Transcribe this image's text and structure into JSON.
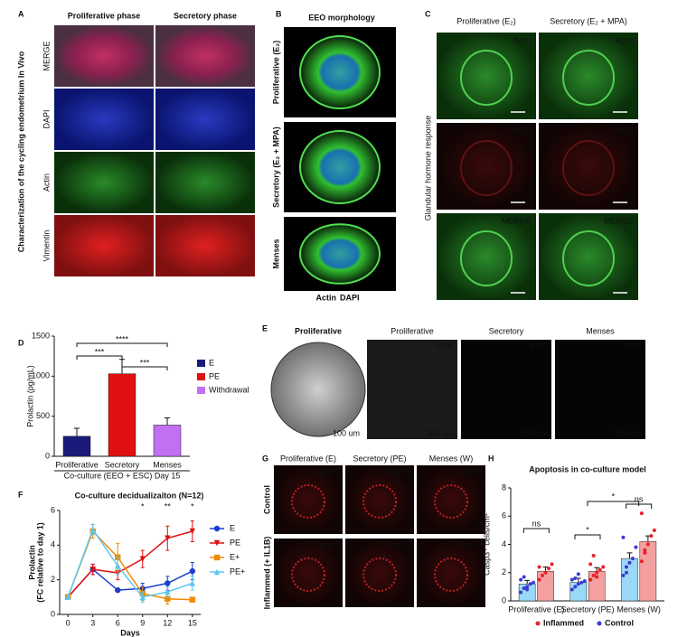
{
  "panels": {
    "A": {
      "letter": "A",
      "cols": [
        "Proliferative phase",
        "Secretory phase"
      ],
      "side": "Characterization of the cycling endometrium In Vivo",
      "rows": [
        "MERGE",
        "DAPI",
        "Actin",
        "Vimentin"
      ]
    },
    "B": {
      "letter": "B",
      "title": "EEO morphology",
      "rows": [
        "Proliferative (E₂)",
        "Secretory (E₂ + MPA)",
        "Menses"
      ],
      "legend": [
        "Actin",
        "DAPI"
      ]
    },
    "C": {
      "letter": "C",
      "cols": [
        "Proliferative (E₂)",
        "Secretory (E₂ + MPA)"
      ],
      "side": "Glandular hormone response",
      "labels": [
        "Actin",
        "Actin",
        "PAEP",
        "PAEP",
        "MERGE",
        "MERGE"
      ]
    },
    "D": {
      "letter": "D"
    },
    "E": {
      "letter": "E",
      "cols": [
        "Proliferative",
        "Proliferative",
        "Secretory",
        "Menses"
      ],
      "labels": [
        "PGR",
        "PGR",
        "PGR"
      ],
      "scales": [
        "100 um",
        "200 um",
        "200 um",
        "200 um"
      ]
    },
    "F": {
      "letter": "F"
    },
    "G": {
      "letter": "G",
      "cols": [
        "Proliferative (E)",
        "Secretory (PE)",
        "Menses (W)"
      ],
      "rows": [
        "Control",
        "Inflammed (+ IL1B)"
      ],
      "label": "Casp-3"
    },
    "H": {
      "letter": "H"
    }
  },
  "chart_data": [
    {
      "type": "bar",
      "ylabel": "Prolactin (pg/mL)",
      "xlabel": "Co-culture (EEO + ESC) Day 15",
      "categories": [
        "Proliferative",
        "Secretory",
        "Menses"
      ],
      "values": [
        250,
        1030,
        390
      ],
      "errors": [
        100,
        180,
        90
      ],
      "colors": [
        "#1a1a7a",
        "#e01010",
        "#c070f0"
      ],
      "legend": [
        "E",
        "PE",
        "Withdrawal"
      ],
      "ylim": [
        0,
        1500
      ],
      "yticks": [
        0,
        500,
        1000,
        1500
      ],
      "annotations": [
        "****",
        "***",
        "***"
      ]
    },
    {
      "type": "line",
      "title": "Co-culture decidualizaiton (N=12)",
      "xlabel": "Days",
      "ylabel": [
        "Prolactin",
        "(FC relative to day 1)"
      ],
      "x": [
        0,
        3,
        6,
        9,
        12,
        15
      ],
      "xlim": [
        -1,
        16
      ],
      "xticks": [
        0,
        3,
        6,
        9,
        12,
        15
      ],
      "ylim": [
        0,
        6
      ],
      "yticks": [
        0,
        2,
        4,
        6
      ],
      "series": [
        {
          "name": "E",
          "color": "#1a3fd0",
          "marker": "circle",
          "values": [
            1,
            2.6,
            1.4,
            1.5,
            1.8,
            2.5
          ],
          "errors": [
            0.05,
            0.3,
            0.1,
            0.3,
            0.4,
            0.5
          ]
        },
        {
          "name": "PE",
          "color": "#e01010",
          "marker": "triangle-down",
          "values": [
            1,
            2.6,
            2.4,
            3.2,
            4.4,
            4.8
          ],
          "errors": [
            0.05,
            0.3,
            0.4,
            0.5,
            0.7,
            0.6
          ]
        },
        {
          "name": "E+",
          "color": "#f08a00",
          "marker": "square",
          "values": [
            1,
            4.8,
            3.3,
            1.2,
            0.9,
            0.85
          ],
          "errors": [
            0.05,
            0.4,
            0.8,
            0.4,
            0.3,
            0.1
          ]
        },
        {
          "name": "PE+",
          "color": "#5ac8f0",
          "marker": "triangle-up",
          "values": [
            1,
            4.9,
            2.8,
            1.0,
            1.3,
            1.8
          ],
          "errors": [
            0.05,
            0.3,
            0.5,
            0.3,
            0.3,
            0.4
          ]
        }
      ],
      "annotations": [
        {
          "text": "*",
          "x": 9
        },
        {
          "text": "**",
          "x": 12
        },
        {
          "text": "*",
          "x": 15
        }
      ]
    },
    {
      "type": "bar",
      "title": "Apoptosis in co-culture model",
      "ylabel": "Casp3⁺ cells/cm²",
      "categories": [
        "Proliferative (E)",
        "Secretory (PE)",
        "Menses (W)"
      ],
      "ylim": [
        0,
        8
      ],
      "yticks": [
        0,
        2,
        4,
        6,
        8
      ],
      "series": [
        {
          "name": "Inflammed",
          "color": "#e8202a",
          "bar_color": "#f4a0a0",
          "values": [
            2.1,
            2.1,
            4.2
          ],
          "errors": [
            0.3,
            0.25,
            0.4
          ],
          "points": [
            [
              1.5,
              1.8,
              2.0,
              2.3,
              2.6,
              2.4
            ],
            [
              1.5,
              1.8,
              2.0,
              2.2,
              2.4,
              2.6,
              3.2,
              1.7
            ],
            [
              2.8,
              3.4,
              4.0,
              4.6,
              5.0,
              6.2,
              3.6
            ]
          ]
        },
        {
          "name": "Control",
          "color": "#3a3ad0",
          "bar_color": "#9ad8f8",
          "values": [
            1.2,
            1.3,
            3.0
          ],
          "errors": [
            0.25,
            0.3,
            0.4
          ],
          "points": [
            [
              0.6,
              0.9,
              1.0,
              1.2,
              1.3,
              1.5,
              1.7,
              0.8
            ],
            [
              0.8,
              1.0,
              1.2,
              1.3,
              1.4,
              1.5,
              1.6,
              1.9
            ],
            [
              1.8,
              2.4,
              2.7,
              3.0,
              3.8,
              4.5,
              2.0
            ]
          ]
        }
      ],
      "annotations": [
        "ns",
        "*",
        "*",
        "ns"
      ]
    }
  ]
}
